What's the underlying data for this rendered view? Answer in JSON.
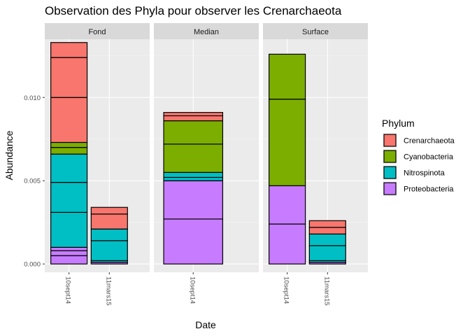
{
  "chart_data": {
    "type": "bar",
    "stacked": true,
    "title": "Observation des Phyla pour observer les Crenarchaeota",
    "xlabel": "Date",
    "ylabel": "Abundance",
    "ylim": [
      -0.0005,
      0.0135
    ],
    "y_ticks": [
      0.0,
      0.005,
      0.01
    ],
    "y_tick_labels": [
      "0.000",
      "0.005",
      "0.010"
    ],
    "grid": true,
    "legend": {
      "title": "Phylum",
      "position": "right",
      "entries": [
        {
          "name": "Crenarchaeota",
          "color": "#F8766D"
        },
        {
          "name": "Cyanobacteria",
          "color": "#7CAE00"
        },
        {
          "name": "Nitrospinota",
          "color": "#00BFC4"
        },
        {
          "name": "Proteobacteria",
          "color": "#C77CFF"
        }
      ]
    },
    "facets": [
      {
        "label": "Fond",
        "categories": [
          "10sept14",
          "11mars15"
        ],
        "bars": [
          {
            "category": "10sept14",
            "segments": [
              {
                "phylum": "Proteobacteria",
                "value": 0.0005
              },
              {
                "phylum": "Proteobacteria",
                "value": 0.0003
              },
              {
                "phylum": "Proteobacteria",
                "value": 0.0002
              },
              {
                "phylum": "Nitrospinota",
                "value": 0.0021
              },
              {
                "phylum": "Nitrospinota",
                "value": 0.0018
              },
              {
                "phylum": "Nitrospinota",
                "value": 0.0017
              },
              {
                "phylum": "Cyanobacteria",
                "value": 0.0004
              },
              {
                "phylum": "Cyanobacteria",
                "value": 0.0003
              },
              {
                "phylum": "Crenarchaeota",
                "value": 0.0027
              },
              {
                "phylum": "Crenarchaeota",
                "value": 0.0024
              },
              {
                "phylum": "Crenarchaeota",
                "value": 0.0009
              }
            ]
          },
          {
            "category": "11mars15",
            "segments": [
              {
                "phylum": "Proteobacteria",
                "value": 0.0001
              },
              {
                "phylum": "Nitrospinota",
                "value": 0.0001
              },
              {
                "phylum": "Nitrospinota",
                "value": 0.0012
              },
              {
                "phylum": "Nitrospinota",
                "value": 0.0007
              },
              {
                "phylum": "Crenarchaeota",
                "value": 0.0009
              },
              {
                "phylum": "Crenarchaeota",
                "value": 0.0004
              }
            ]
          }
        ]
      },
      {
        "label": "Median",
        "categories": [
          "10sept14"
        ],
        "bars": [
          {
            "category": "10sept14",
            "segments": [
              {
                "phylum": "Proteobacteria",
                "value": 0.0027
              },
              {
                "phylum": "Proteobacteria",
                "value": 0.0023
              },
              {
                "phylum": "Nitrospinota",
                "value": 0.0002
              },
              {
                "phylum": "Nitrospinota",
                "value": 0.0003
              },
              {
                "phylum": "Cyanobacteria",
                "value": 0.0017
              },
              {
                "phylum": "Cyanobacteria",
                "value": 0.0014
              },
              {
                "phylum": "Crenarchaeota",
                "value": 0.0003
              },
              {
                "phylum": "Crenarchaeota",
                "value": 0.0002
              }
            ]
          }
        ]
      },
      {
        "label": "Surface",
        "categories": [
          "10sept14",
          "11mars15"
        ],
        "bars": [
          {
            "category": "10sept14",
            "segments": [
              {
                "phylum": "Proteobacteria",
                "value": 0.0024
              },
              {
                "phylum": "Proteobacteria",
                "value": 0.0023
              },
              {
                "phylum": "Cyanobacteria",
                "value": 0.0052
              },
              {
                "phylum": "Cyanobacteria",
                "value": 0.0027
              }
            ]
          },
          {
            "category": "11mars15",
            "segments": [
              {
                "phylum": "Proteobacteria",
                "value": 0.0001
              },
              {
                "phylum": "Nitrospinota",
                "value": 0.0001
              },
              {
                "phylum": "Nitrospinota",
                "value": 0.0009
              },
              {
                "phylum": "Nitrospinota",
                "value": 0.0007
              },
              {
                "phylum": "Crenarchaeota",
                "value": 0.0004
              },
              {
                "phylum": "Crenarchaeota",
                "value": 0.0004
              }
            ]
          }
        ]
      }
    ]
  }
}
